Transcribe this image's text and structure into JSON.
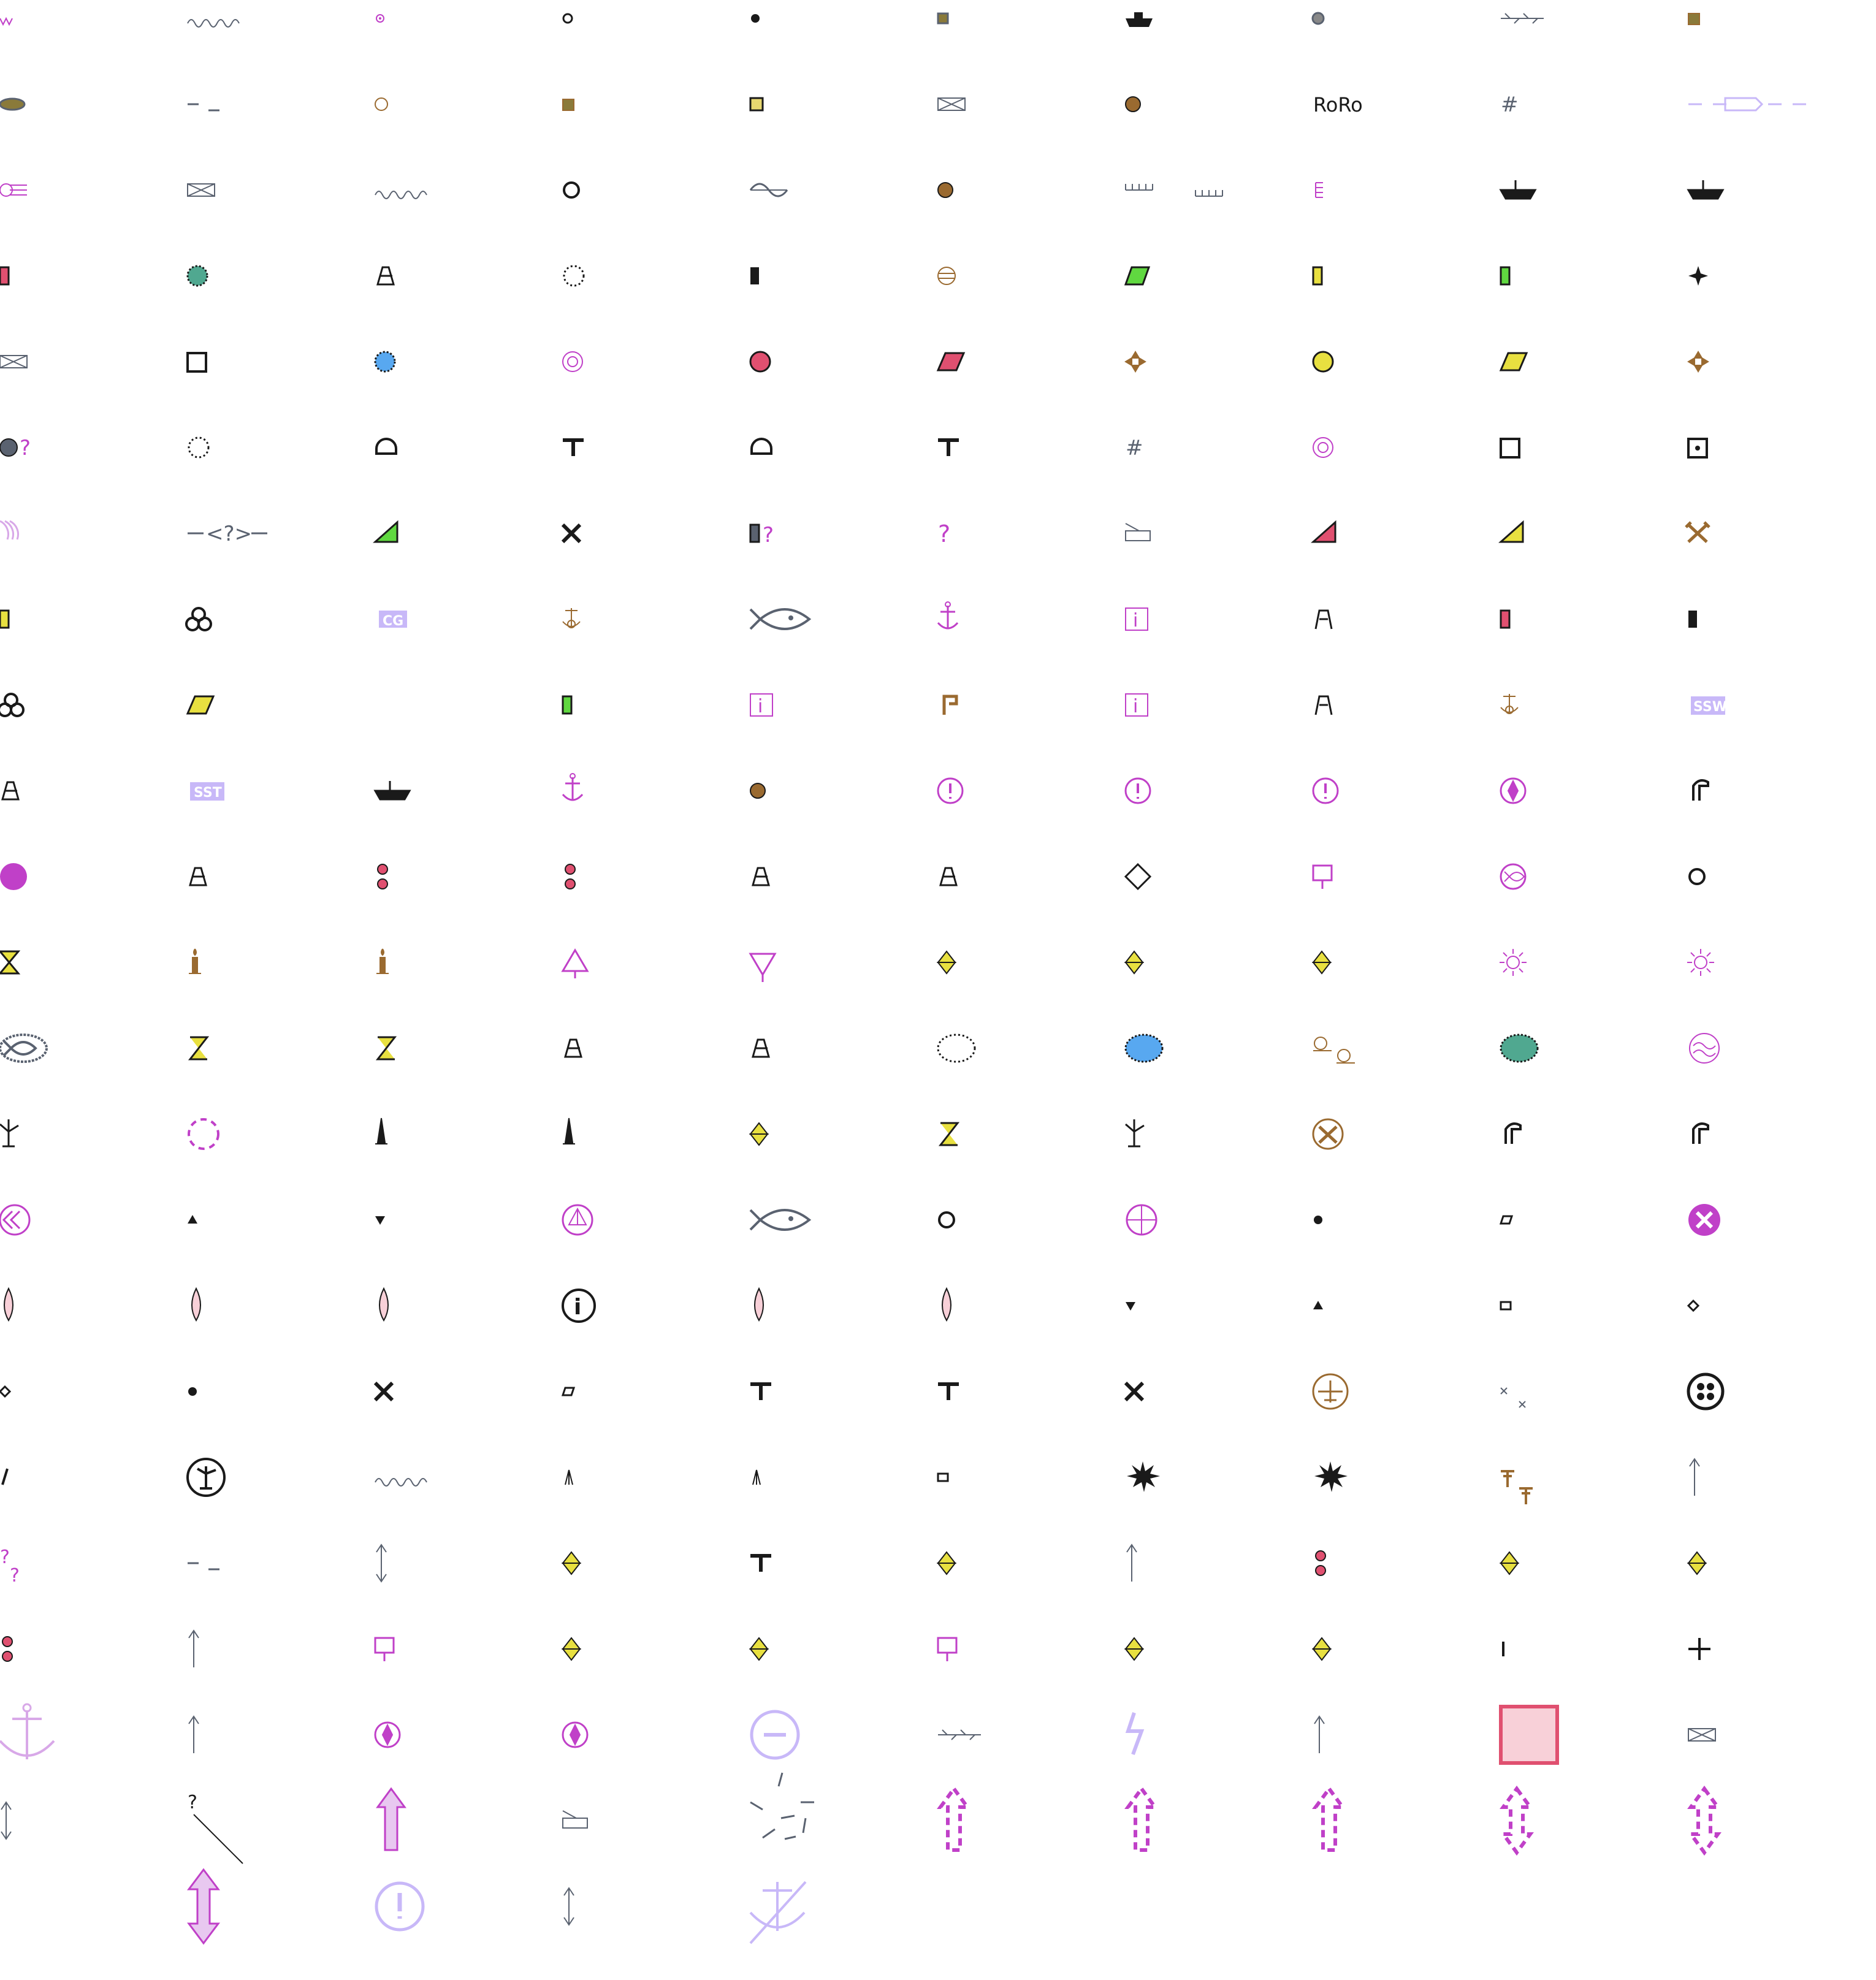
{
  "sheet": {
    "title": "",
    "text_labels": {
      "roro": "RoRo",
      "cg_box": "CG",
      "ssw_box": "SSW",
      "sst_box": "SST",
      "unknown_mark": "?",
      "info_mark": "i",
      "hash_mark": "#"
    }
  },
  "colors": {
    "black": "#1a1a1a",
    "gray": "#5a6270",
    "magenta": "#c040c8",
    "light_magenta": "#d8a8e8",
    "lavender": "#c8b8f8",
    "brown": "#9a6a30",
    "olive": "#8a7a3a",
    "yellow": "#e8e040",
    "green": "#60d840",
    "red": "#e05070",
    "teal": "#50a890",
    "blue": "#58a8f0",
    "pink_fill": "#f8d0d8"
  },
  "grid": {
    "rows": 23,
    "columns": 10,
    "row_0": [
      "wave-marks-icon",
      "wave-line-icon",
      "small-ring-icon",
      "small-circle-icon",
      "dot-icon",
      "small-square-icon",
      "boat-icon",
      "gray-dot-icon",
      "weed-icon",
      "brown-square-icon"
    ],
    "row_1": [
      "buoy-ellipse-icon",
      "dash-icon",
      "ring-icon",
      "brown-square-icon",
      "yellow-square-icon",
      "crossed-box-icon",
      "brown-dot-icon",
      "roro-label",
      "hash-icon",
      "dashed-outline-icon"
    ],
    "row_2": [
      "beam-icon",
      "crossed-box-icon",
      "wave-line-icon",
      "circle-icon",
      "sine-icon",
      "brown-dot-icon",
      "ticks-icon",
      "comb-icon",
      "ship-icon",
      "ship-icon"
    ],
    "row_3": [
      "red-rect-icon",
      "teal-dot-icon",
      "beacon-icon",
      "dotted-circle-icon",
      "black-rect-icon",
      "striped-circle-icon",
      "green-parallelogram-icon",
      "yellow-rect-icon",
      "green-rect-icon",
      "star-icon"
    ],
    "row_4": [
      "crossed-box-icon",
      "square-icon",
      "blue-dot-icon",
      "target-icon",
      "red-dot-icon",
      "red-parallelogram-icon",
      "maltese-cross-icon",
      "yellow-dot-icon",
      "yellow-parallelogram-icon",
      "maltese-cross-icon"
    ],
    "row_5": [
      "gray-dot-unknown-icon",
      "dotted-circle-icon",
      "dome-icon",
      "tee-icon",
      "dome-icon",
      "tee-icon",
      "hash-icon",
      "target-icon",
      "square-icon",
      "dotted-square-icon"
    ],
    "row_6": [
      "arcs-icon",
      "unknown-bracket-icon",
      "green-triangle-icon",
      "cross-icon",
      "unknown-rect-icon",
      "question-icon",
      "box-icon",
      "red-triangle-icon",
      "yellow-triangle-icon",
      "crossed-hammers-icon"
    ],
    "row_7": [
      "yellow-rect-icon",
      "trefoil-icon",
      "cg-box-label",
      "anchor-small-icon",
      "fish-icon",
      "anchor-icon",
      "info-icon",
      "tower-icon",
      "red-rect-icon",
      "black-rect-icon"
    ],
    "row_8": [
      "trefoil-icon",
      "yellow-parallelogram-icon",
      "triangle-icon",
      "green-rect-icon",
      "info-icon",
      "crane-icon",
      "info-icon",
      "tower-icon",
      "anchor-small-icon",
      "ssw-box-label"
    ],
    "row_9": [
      "beacon-icon",
      "sst-box-label",
      "ship-icon",
      "anchor-icon",
      "brown-dot-icon",
      "exclamation-icon",
      "exclamation-icon",
      "exclamation-icon",
      "diamond-circle-icon",
      "chimney-icon"
    ],
    "row_10": [
      "magenta-dot-icon",
      "beacon-icon",
      "two-dots-icon",
      "two-dots-icon",
      "beacon-icon",
      "beacon-icon",
      "diamond-icon",
      "flag-icon",
      "fish-circle-icon",
      "circle-icon"
    ],
    "row_11": [
      "hourglass-icon",
      "candle-icon",
      "candle-icon",
      "triangle-up-icon",
      "triangle-down-icon",
      "double-triangle-icon",
      "double-triangle-icon",
      "double-triangle-icon",
      "sun-icon",
      "sun-icon"
    ],
    "row_12": [
      "fish-ellipse-icon",
      "zigzag-icon",
      "zigzag-icon",
      "beacon-icon",
      "beacon-icon",
      "dotted-ellipse-icon",
      "blue-ellipse-icon",
      "loops-icon",
      "teal-ellipse-icon",
      "wave-circle-icon"
    ],
    "row_13": [
      "windmill-icon",
      "dashed-circle-icon",
      "spire-icon",
      "spire-icon",
      "double-triangle-icon",
      "zigzag-icon",
      "windmill-icon",
      "hammers-circle-icon",
      "chimney-icon",
      "chimney-icon"
    ],
    "row_14": [
      "chevrons-circle-icon",
      "triangle-up-small-icon",
      "triangle-down-small-icon",
      "sail-circle-icon",
      "fish-icon",
      "circle-icon",
      "crosshair-circle-icon",
      "dot-icon",
      "small-parallelogram-icon",
      "x-circle-icon"
    ],
    "row_15": [
      "drop-icon",
      "drop-icon",
      "drop-icon",
      "info-circle-icon",
      "drop-icon",
      "drop-icon",
      "triangle-down-small-icon",
      "triangle-up-small-icon",
      "small-rect-icon",
      "small-diamond-icon"
    ],
    "row_16": [
      "small-diamond-icon",
      "dot-icon",
      "cross-icon",
      "small-parallelogram-icon",
      "tee-icon",
      "tee-icon",
      "cross-icon",
      "plane-circle-icon",
      "two-crosses-icon",
      "four-dots-icon"
    ],
    "row_17": [
      "slash-icon",
      "windmill-circle-icon",
      "wave-line-icon",
      "wedge-icon",
      "wedge-icon",
      "small-rect-icon",
      "burst-icon",
      "burst-icon",
      "mushroom-icon",
      "arrow-up-icon"
    ],
    "row_18": [
      "double-question-icon",
      "dash-icon",
      "double-arrow-icon",
      "double-triangle-icon",
      "tee-icon",
      "double-triangle-icon",
      "arrow-up-icon",
      "two-dots-icon",
      "double-triangle-icon",
      "double-triangle-icon"
    ],
    "row_19": [
      "two-dots-icon",
      "arrow-up-icon",
      "flag-icon",
      "double-triangle-icon",
      "double-triangle-icon",
      "flag-icon",
      "double-triangle-icon",
      "double-triangle-icon",
      "bar-icon",
      "plus-icon"
    ],
    "row_20": [
      "anchor-large-icon",
      "arrow-up-icon",
      "diamond-circle-icon",
      "diamond-circle-icon",
      "minus-circle-icon",
      "weed-icon",
      "lightning-icon",
      "arrow-up-icon",
      "pink-square-icon",
      "crossed-box-icon"
    ],
    "row_21": [
      "double-arrow-icon",
      "diagonal-line-icon",
      "large-arrow-icon",
      "box-icon",
      "scattered-lines-icon",
      "dashed-arrow-icon",
      "dashed-arrow-icon",
      "dashed-arrow-icon",
      "dashed-double-arrow-icon",
      "dashed-double-arrow-icon"
    ],
    "row_22": [
      "",
      "large-double-arrow-icon",
      "exclamation-circle-large-icon",
      "double-arrow-icon",
      "anchor-crossed-icon",
      "",
      "",
      "",
      "",
      ""
    ]
  }
}
